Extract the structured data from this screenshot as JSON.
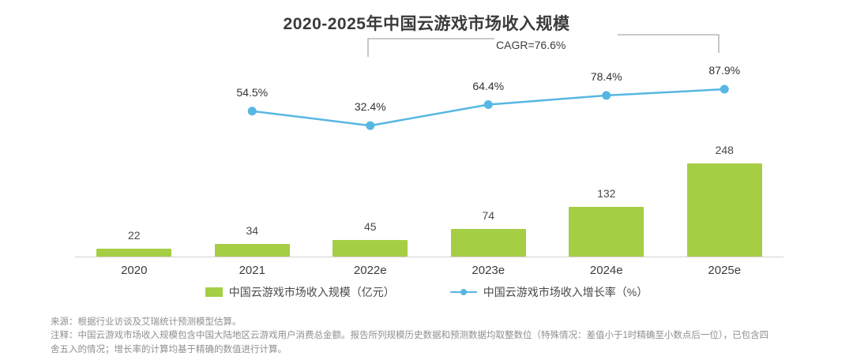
{
  "title": "2020-2025年中国云游戏市场收入规模",
  "cagr_label": "CAGR=76.6%",
  "chart_data": {
    "type": "bar",
    "subtype": "bar+line combo",
    "categories": [
      "2020",
      "2021",
      "2022e",
      "2023e",
      "2024e",
      "2025e"
    ],
    "series": [
      {
        "name": "中国云游戏市场收入规模（亿元）",
        "type": "bar",
        "values": [
          22,
          34,
          45,
          74,
          132,
          248
        ],
        "color": "#a5ce45"
      },
      {
        "name": "中国云游戏市场收入增长率（%）",
        "type": "line",
        "values": [
          null,
          54.5,
          32.4,
          64.4,
          78.4,
          87.9
        ],
        "point_labels": [
          "",
          "54.5%",
          "32.4%",
          "64.4%",
          "78.4%",
          "87.9%"
        ],
        "color": "#57b7e3"
      }
    ],
    "title": "2020-2025年中国云游戏市场收入规模",
    "xlabel": "",
    "ylabel": "",
    "ylim_bar": [
      0,
      260
    ],
    "ylim_line": [
      0,
      100
    ],
    "grid": false,
    "legend_position": "bottom",
    "annotations": [
      {
        "text": "CAGR=76.6%",
        "span": [
          "2022e",
          "2025e"
        ]
      }
    ]
  },
  "legend": {
    "bar_label": "中国云游戏市场收入规模（亿元）",
    "line_label": "中国云游戏市场收入增长率（%）"
  },
  "notes": {
    "lines": [
      "来源：根据行业访谈及艾瑞统计预测模型估算。",
      "注释：中国云游戏市场收入规模包含中国大陆地区云游戏用户消费总金额。报告所列规模历史数据和预测数据均取整数位（特殊情况：差值小于1时精确至小数点后一位），已包含四",
      "舍五入的情况；增长率的计算均基于精确的数值进行计算。"
    ]
  }
}
